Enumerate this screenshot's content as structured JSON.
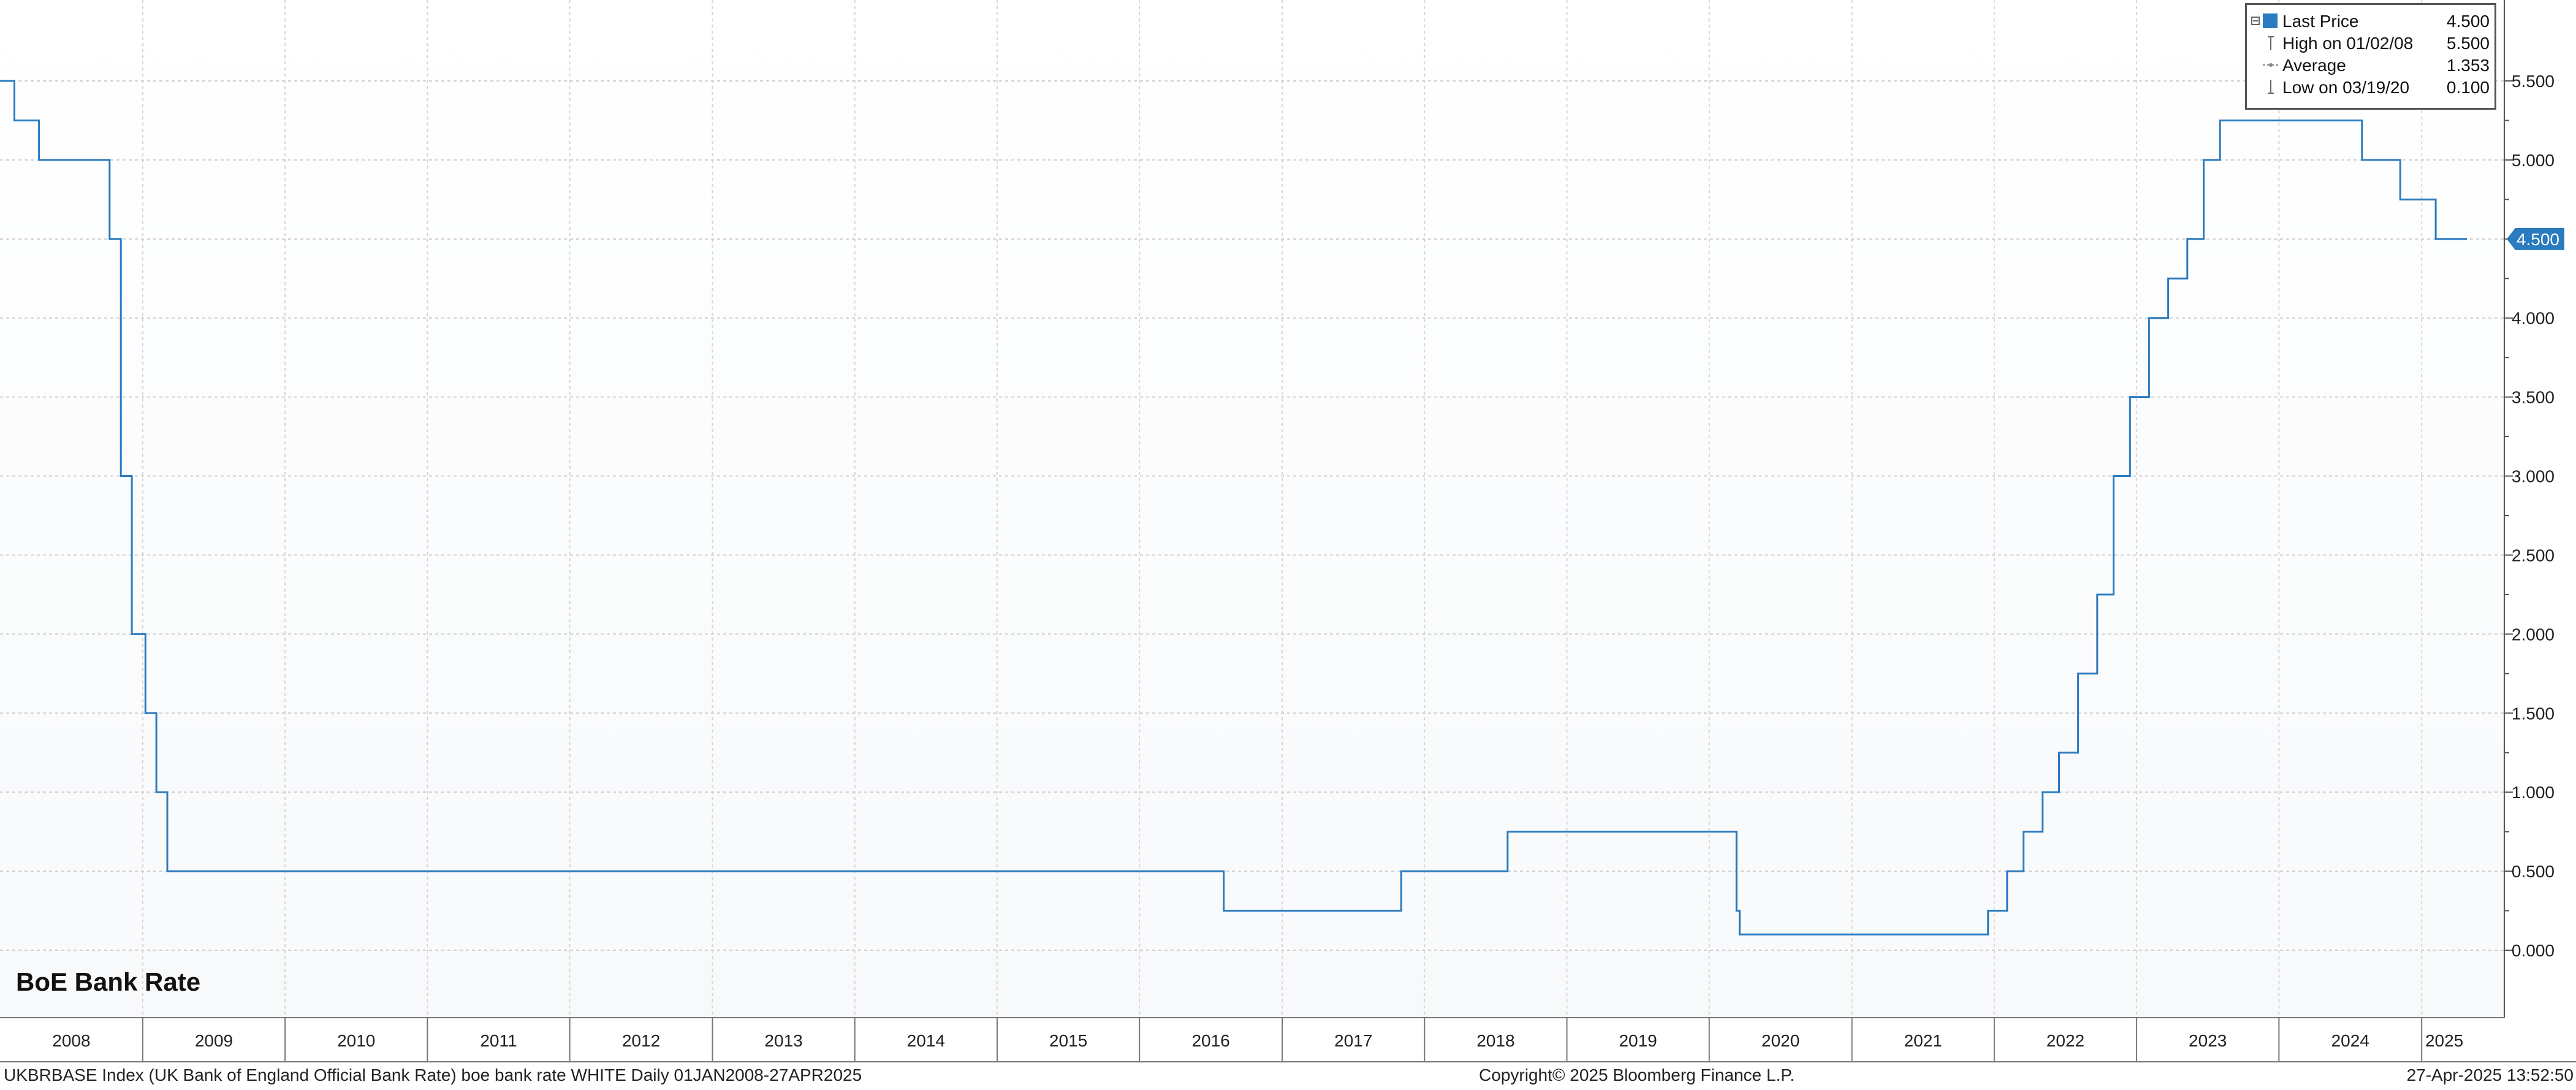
{
  "chart_data": {
    "type": "line",
    "title": "BoE Bank Rate",
    "ticker_line": "UKBRBASE Index (UK Bank of England Official Bank Rate) boe bank rate WHITE  Daily 01JAN2008-27APR2025",
    "copyright": "Copyright© 2025 Bloomberg Finance L.P.",
    "timestamp": "27-Apr-2025 13:52:50",
    "x_range": [
      "2008-01-01",
      "2025-04-27"
    ],
    "ylim": [
      0,
      5.5
    ],
    "y_ticks": [
      "0.000",
      "0.500",
      "1.000",
      "1.500",
      "2.000",
      "2.500",
      "3.000",
      "3.500",
      "4.000",
      "4.500",
      "5.000",
      "5.500"
    ],
    "x_ticks": [
      "2008",
      "2009",
      "2010",
      "2011",
      "2012",
      "2013",
      "2014",
      "2015",
      "2016",
      "2017",
      "2018",
      "2019",
      "2020",
      "2021",
      "2022",
      "2023",
      "2024",
      "2025"
    ],
    "grid": true,
    "line_color": "#2a7bbf",
    "last_value_label": "4.500",
    "legend": {
      "position": "top-right",
      "entries": [
        {
          "label": "Last Price",
          "value": "4.500"
        },
        {
          "label": "High on 01/02/08",
          "value": "5.500"
        },
        {
          "label": "Average",
          "value": "1.353"
        },
        {
          "label": "Low on 03/19/20",
          "value": "0.100"
        }
      ]
    },
    "series": [
      {
        "x": [
          "2008-01-01",
          "2008-02-07",
          "2008-04-10",
          "2008-10-08",
          "2008-11-06",
          "2008-12-04",
          "2009-01-08",
          "2009-02-05",
          "2009-03-05",
          "2016-08-04",
          "2017-11-02",
          "2018-08-02",
          "2020-03-11",
          "2020-03-19",
          "2021-12-16",
          "2022-02-03",
          "2022-03-17",
          "2022-05-05",
          "2022-06-16",
          "2022-08-04",
          "2022-09-22",
          "2022-11-03",
          "2022-12-15",
          "2023-02-02",
          "2023-03-23",
          "2023-05-11",
          "2023-06-22",
          "2023-08-03",
          "2024-08-01",
          "2024-11-07",
          "2025-02-06",
          "2025-04-27"
        ],
        "values": [
          5.5,
          5.25,
          5.0,
          4.5,
          3.0,
          2.0,
          1.5,
          1.0,
          0.5,
          0.25,
          0.5,
          0.75,
          0.25,
          0.1,
          0.25,
          0.5,
          0.75,
          1.0,
          1.25,
          1.75,
          2.25,
          3.0,
          3.5,
          4.0,
          4.25,
          4.5,
          5.0,
          5.25,
          5.0,
          4.75,
          4.5,
          4.5
        ]
      }
    ]
  }
}
